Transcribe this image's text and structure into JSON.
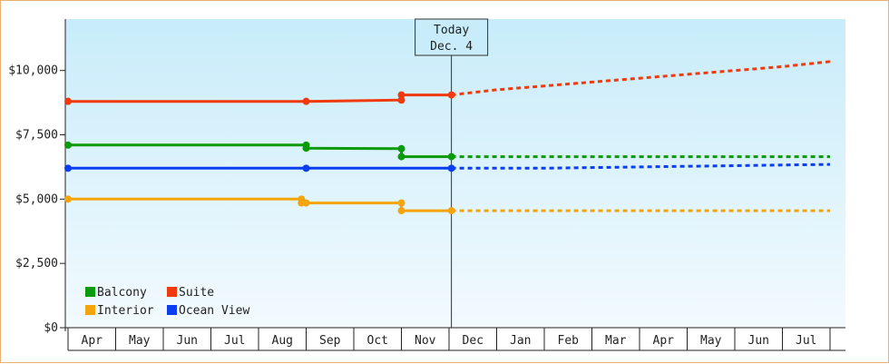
{
  "chart_data": {
    "type": "line",
    "title": "",
    "xlabel": "",
    "ylabel": "",
    "ylim": [
      0,
      12000
    ],
    "y_ticks": [
      0,
      2500,
      5000,
      7500,
      10000
    ],
    "y_tick_labels": [
      "$0",
      "$2,500",
      "$5,000",
      "$7,500",
      "$10,000"
    ],
    "x_month_labels": [
      "Apr",
      "May",
      "Jun",
      "Jul",
      "Aug",
      "Sep",
      "Oct",
      "Nov",
      "Dec",
      "Jan",
      "Feb",
      "Mar",
      "Apr",
      "May",
      "Jun",
      "Jul"
    ],
    "today_marker": {
      "line1": "Today",
      "line2": "Dec. 4",
      "month_index": 8.05
    },
    "legend": {
      "placement": "bottom-left",
      "order": [
        "Balcony",
        "Suite",
        "Interior",
        "Ocean View"
      ]
    },
    "series": [
      {
        "name": "Suite",
        "color": "#f03a0c",
        "actual": [
          [
            0.0,
            8800
          ],
          [
            5.0,
            8800
          ],
          [
            7.0,
            8850
          ],
          [
            7.0,
            9050
          ],
          [
            8.05,
            9050
          ]
        ],
        "forecast": [
          [
            8.05,
            9050
          ],
          [
            9.0,
            9250
          ],
          [
            10.0,
            9400
          ],
          [
            11.0,
            9550
          ],
          [
            12.0,
            9700
          ],
          [
            13.0,
            9850
          ],
          [
            14.0,
            10000
          ],
          [
            15.0,
            10150
          ],
          [
            16.0,
            10350
          ]
        ]
      },
      {
        "name": "Balcony",
        "color": "#0a9a0a",
        "actual": [
          [
            0.0,
            7100
          ],
          [
            5.0,
            7100
          ],
          [
            5.0,
            6980
          ],
          [
            7.0,
            6960
          ],
          [
            7.0,
            6650
          ],
          [
            8.05,
            6650
          ]
        ],
        "forecast": [
          [
            8.05,
            6650
          ],
          [
            16.0,
            6650
          ]
        ]
      },
      {
        "name": "Ocean View",
        "color": "#0a3ef0",
        "actual": [
          [
            0.0,
            6200
          ],
          [
            5.0,
            6200
          ],
          [
            8.05,
            6200
          ]
        ],
        "forecast": [
          [
            8.05,
            6200
          ],
          [
            10.0,
            6200
          ],
          [
            12.0,
            6250
          ],
          [
            14.0,
            6300
          ],
          [
            16.0,
            6350
          ]
        ]
      },
      {
        "name": "Interior",
        "color": "#f4a40c",
        "actual": [
          [
            0.0,
            5000
          ],
          [
            4.9,
            5000
          ],
          [
            4.9,
            4850
          ],
          [
            7.0,
            4850
          ],
          [
            7.0,
            4550
          ],
          [
            8.05,
            4550
          ]
        ],
        "forecast": [
          [
            8.05,
            4550
          ],
          [
            16.0,
            4550
          ]
        ]
      }
    ],
    "markers": [
      {
        "series": "Suite",
        "points": [
          [
            0.0,
            8800
          ],
          [
            5.0,
            8800
          ],
          [
            7.0,
            8850
          ],
          [
            7.0,
            9050
          ],
          [
            8.05,
            9050
          ]
        ]
      },
      {
        "series": "Balcony",
        "points": [
          [
            0.0,
            7100
          ],
          [
            5.0,
            7100
          ],
          [
            5.0,
            6980
          ],
          [
            7.0,
            6960
          ],
          [
            7.0,
            6650
          ],
          [
            8.05,
            6650
          ]
        ]
      },
      {
        "series": "Ocean View",
        "points": [
          [
            0.0,
            6200
          ],
          [
            5.0,
            6200
          ],
          [
            8.05,
            6200
          ]
        ]
      },
      {
        "series": "Interior",
        "points": [
          [
            0.0,
            5000
          ],
          [
            4.9,
            5000
          ],
          [
            4.9,
            4850
          ],
          [
            5.0,
            4850
          ],
          [
            7.0,
            4850
          ],
          [
            7.0,
            4550
          ],
          [
            8.05,
            4550
          ]
        ]
      }
    ]
  }
}
